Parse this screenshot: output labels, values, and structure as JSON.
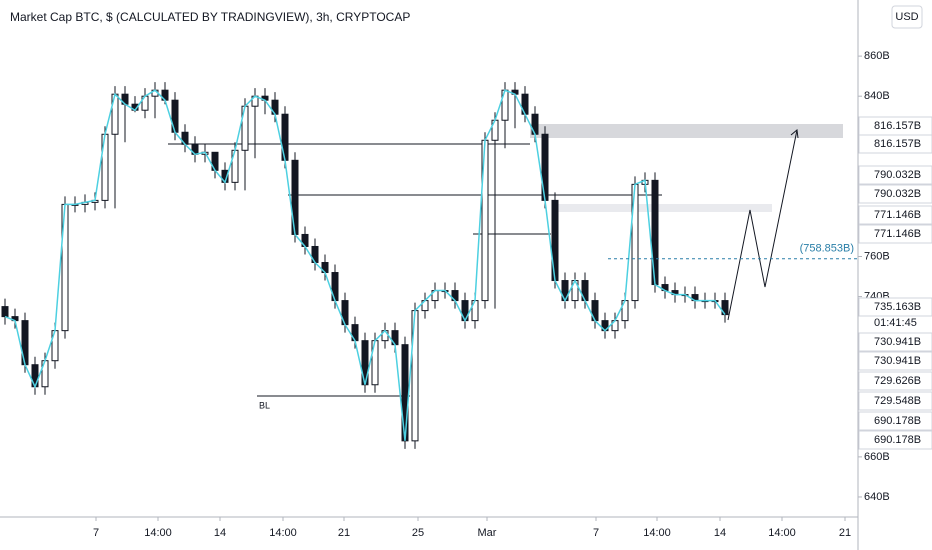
{
  "chart_data": {
    "type": "candlestick",
    "title": "Market Cap BTC, $ (CALCULATED BY TRADINGVIEW), 3h, CRYPTOCAP",
    "currency": "USD",
    "up_color": "#ffffff",
    "down_color": "#131722",
    "line_color": "#4dd0e1",
    "open": [
      735,
      730,
      728,
      706,
      695,
      708,
      723,
      786,
      786,
      787,
      788,
      821,
      841,
      836,
      833,
      840,
      843,
      838,
      822,
      816,
      811,
      812,
      803,
      797,
      813,
      835,
      840,
      838,
      831,
      808,
      771,
      765,
      757,
      752,
      738,
      726,
      718,
      696,
      718,
      723,
      716,
      668,
      733,
      738,
      743,
      743,
      738,
      728,
      738,
      818,
      828,
      843,
      841,
      831,
      821,
      788,
      748,
      738,
      748,
      738,
      728,
      723,
      728,
      738,
      796,
      798,
      746,
      743,
      741,
      741,
      738,
      738,
      738
    ],
    "high": [
      739,
      734,
      732,
      710,
      712,
      727,
      790,
      790,
      791,
      792,
      825,
      845,
      845,
      840,
      844,
      847,
      847,
      842,
      826,
      820,
      816,
      812,
      807,
      817,
      839,
      844,
      844,
      842,
      835,
      812,
      775,
      769,
      761,
      756,
      742,
      730,
      722,
      722,
      727,
      727,
      720,
      737,
      742,
      747,
      747,
      747,
      742,
      742,
      822,
      832,
      847,
      847,
      845,
      835,
      825,
      792,
      752,
      752,
      752,
      742,
      732,
      732,
      742,
      800,
      802,
      802,
      750,
      747,
      745,
      745,
      742,
      742,
      742
    ],
    "low": [
      726,
      724,
      702,
      691,
      691,
      704,
      719,
      782,
      782,
      783,
      784,
      784,
      817,
      832,
      829,
      829,
      836,
      818,
      812,
      807,
      807,
      799,
      793,
      793,
      793,
      809,
      831,
      827,
      804,
      767,
      761,
      753,
      748,
      734,
      722,
      714,
      692,
      692,
      714,
      712,
      664,
      664,
      729,
      734,
      739,
      734,
      724,
      724,
      734,
      734,
      814,
      824,
      827,
      817,
      784,
      744,
      734,
      734,
      734,
      724,
      719,
      719,
      724,
      734,
      792,
      742,
      739,
      737,
      737,
      734,
      734,
      734,
      727
    ],
    "close": [
      730,
      728,
      706,
      695,
      708,
      723,
      786,
      786,
      787,
      788,
      821,
      841,
      836,
      833,
      840,
      843,
      838,
      822,
      816,
      811,
      812,
      803,
      797,
      813,
      835,
      840,
      838,
      831,
      808,
      771,
      765,
      757,
      752,
      738,
      726,
      718,
      696,
      718,
      723,
      716,
      668,
      733,
      738,
      743,
      743,
      738,
      728,
      738,
      818,
      828,
      843,
      841,
      831,
      821,
      788,
      748,
      738,
      748,
      738,
      728,
      723,
      728,
      738,
      796,
      798,
      746,
      743,
      741,
      741,
      738,
      738,
      738,
      731
    ],
    "xlim": [
      -0.5,
      85.3
    ],
    "xticks": [
      {
        "value": 9.1,
        "label": "7"
      },
      {
        "value": 15.3,
        "label": "14:00"
      },
      {
        "value": 21.5,
        "label": "14"
      },
      {
        "value": 27.8,
        "label": "14:00"
      },
      {
        "value": 33.9,
        "label": "21"
      },
      {
        "value": 41.3,
        "label": "25"
      },
      {
        "value": 48.2,
        "label": "Mar"
      },
      {
        "value": 59.1,
        "label": "7"
      },
      {
        "value": 65.2,
        "label": "14:00"
      },
      {
        "value": 71.5,
        "label": "14"
      },
      {
        "value": 77.7,
        "label": "14:00"
      },
      {
        "value": 84,
        "label": "21"
      }
    ],
    "ylim": [
      630,
      888
    ],
    "yticks": [
      {
        "value": 640,
        "label": "640B"
      },
      {
        "value": 660,
        "label": "660B"
      },
      {
        "value": 740,
        "label": "740B"
      },
      {
        "value": 760,
        "label": "760B"
      },
      {
        "value": 840,
        "label": "840B"
      },
      {
        "value": 860,
        "label": "860B"
      }
    ],
    "alert_line": {
      "value": 758.853,
      "label": "(758.853B)",
      "color": "#2a7fa8"
    },
    "price_labels": [
      {
        "value": 816.157,
        "label": "816.157B"
      },
      {
        "value": 816.157,
        "label": "816.157B"
      },
      {
        "value": 790.032,
        "label": "790.032B"
      },
      {
        "value": 790.032,
        "label": "790.032B"
      },
      {
        "value": 771.146,
        "label": "771.146B"
      },
      {
        "value": 771.146,
        "label": "771.146B"
      },
      {
        "value": 735.163,
        "label": "735.163B"
      },
      {
        "value": 730.941,
        "label": "730.941B"
      },
      {
        "value": 730.941,
        "label": "730.941B"
      },
      {
        "value": 729.626,
        "label": "729.626B"
      },
      {
        "value": 729.548,
        "label": "729.548B"
      },
      {
        "value": 690.178,
        "label": "690.178B"
      },
      {
        "value": 690.178,
        "label": "690.178B"
      }
    ],
    "countdown": "01:41:45",
    "annotation": "BL"
  }
}
